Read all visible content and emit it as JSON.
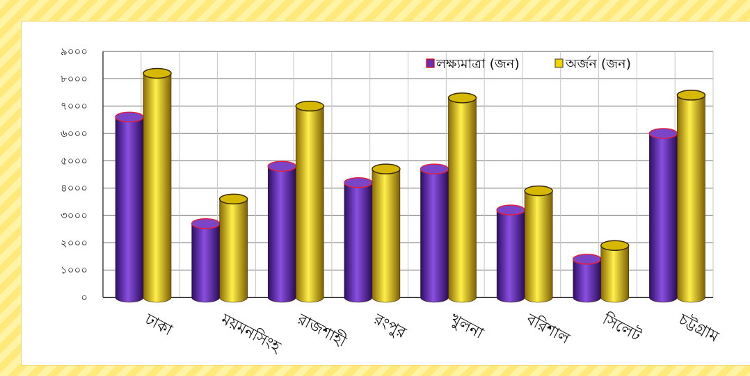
{
  "chart_data": {
    "type": "bar",
    "categories": [
      "ঢাকা",
      "ময়মনসিংহ",
      "রাজশাহী",
      "রংপুর",
      "খুলনা",
      "বরিশাল",
      "সিলেট",
      "চট্টগ্রাম"
    ],
    "series": [
      {
        "name": "লক্ষ্যমাত্রা (জন)",
        "color": "#6a2fb0",
        "values": [
          6600,
          2700,
          4800,
          4200,
          4700,
          3200,
          1400,
          6000
        ]
      },
      {
        "name": "অর্জন (জন)",
        "color": "#f2d400",
        "values": [
          8200,
          3600,
          7000,
          4700,
          7300,
          3900,
          1900,
          7400
        ]
      }
    ],
    "yticks": [
      "০",
      "১০০০",
      "২০০০",
      "৩০০০",
      "৪০০০",
      "৫০০০",
      "৬০০০",
      "৭০০০",
      "৮০০০",
      "৯০০০"
    ],
    "ylim": [
      0,
      9000
    ],
    "grid": true,
    "legend_position": "top-right",
    "style": "3d-cylinder"
  }
}
